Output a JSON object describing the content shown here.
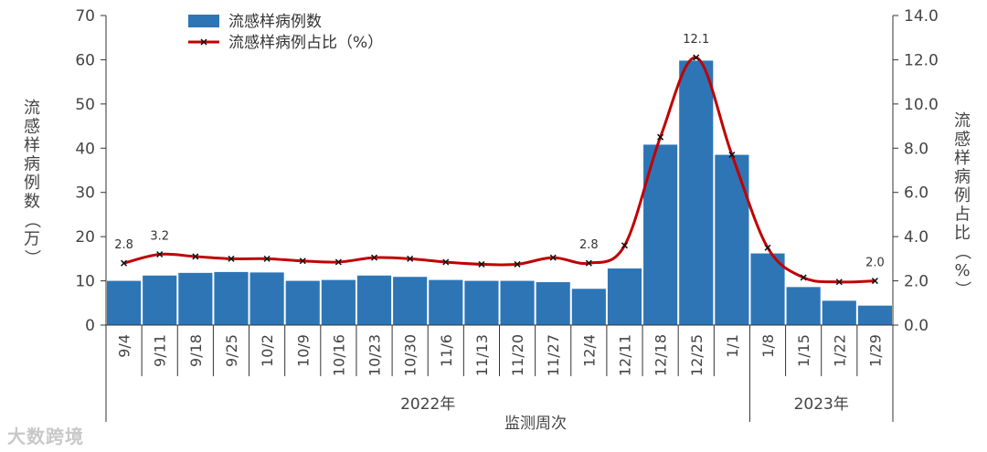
{
  "watermark": "大数跨境",
  "chart_data": {
    "type": "bar",
    "categories": [
      "9/4",
      "9/11",
      "9/18",
      "9/25",
      "10/2",
      "10/9",
      "10/16",
      "10/23",
      "10/30",
      "11/6",
      "11/13",
      "11/20",
      "11/27",
      "12/4",
      "12/11",
      "12/18",
      "12/25",
      "1/1",
      "1/8",
      "1/15",
      "1/22",
      "1/29"
    ],
    "year_groups": [
      {
        "label": "2022年",
        "start": 0,
        "end": 17
      },
      {
        "label": "2023年",
        "start": 18,
        "end": 21
      }
    ],
    "series": [
      {
        "name": "流感样病例数",
        "type": "bar",
        "axis": "left",
        "color": "#2e75b6",
        "values": [
          10.0,
          11.2,
          11.8,
          12.0,
          11.9,
          10.0,
          10.2,
          11.2,
          10.9,
          10.2,
          10.0,
          10.0,
          9.7,
          8.2,
          12.8,
          40.8,
          59.8,
          38.5,
          16.2,
          8.6,
          5.5,
          4.4
        ]
      },
      {
        "name": "流感样病例占比（%）",
        "type": "line",
        "axis": "right",
        "color": "#c00000",
        "values": [
          2.8,
          3.2,
          3.1,
          3.0,
          3.0,
          2.9,
          2.85,
          3.05,
          3.0,
          2.85,
          2.75,
          2.75,
          3.05,
          2.8,
          3.6,
          8.5,
          12.1,
          7.7,
          3.5,
          2.15,
          1.95,
          2.0
        ]
      }
    ],
    "data_labels": [
      {
        "index": 0,
        "text": "2.8"
      },
      {
        "index": 1,
        "text": "3.2"
      },
      {
        "index": 13,
        "text": "2.8"
      },
      {
        "index": 16,
        "text": "12.1"
      },
      {
        "index": 21,
        "text": "2.0"
      }
    ],
    "xlabel": "监测周次",
    "ylabel": "流感样病例数（万）",
    "y2label": "流感样病例占比（%）",
    "ylim": [
      0,
      70
    ],
    "yticks": [
      "0",
      "10",
      "20",
      "30",
      "40",
      "50",
      "60",
      "70"
    ],
    "y2lim": [
      0,
      14
    ],
    "y2ticks": [
      "0.0",
      "2.0",
      "4.0",
      "6.0",
      "8.0",
      "10.0",
      "12.0",
      "14.0"
    ],
    "grid": false,
    "legend_position": "top-left"
  }
}
